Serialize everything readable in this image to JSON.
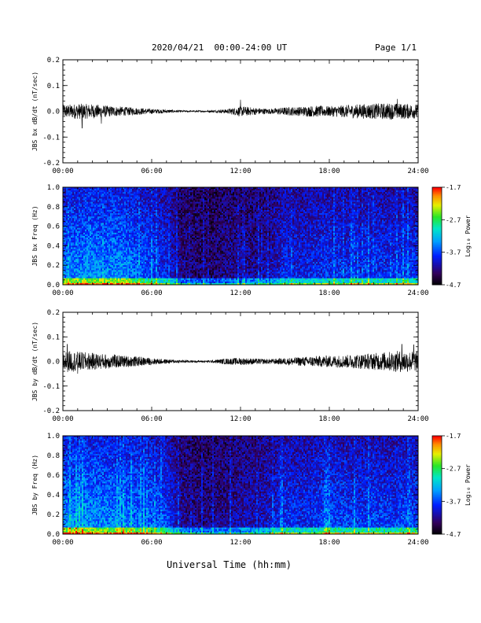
{
  "header": {
    "title": "2020/04/21  00:00-24:00 UT",
    "page": "Page 1/1"
  },
  "footer": {
    "xlabel": "Universal Time (hh:mm)"
  },
  "chart_data": [
    {
      "type": "line",
      "ylabel": "JBS bx dB/dt (nT/sec)",
      "ylim": [
        -0.2,
        0.2
      ],
      "yticks": [
        "-0.2",
        "-0.1",
        "0.0",
        "0.1",
        "0.2"
      ],
      "xlim": [
        "00:00",
        "24:00"
      ],
      "xticks": [
        "00:00",
        "06:00",
        "12:00",
        "18:00",
        "24:00"
      ],
      "envelope": {
        "hours": [
          0,
          1,
          2,
          3,
          4,
          5,
          6,
          7,
          8,
          9,
          10,
          11,
          12,
          13,
          14,
          15,
          16,
          17,
          18,
          19,
          20,
          21,
          22,
          23,
          24
        ],
        "amplitude": [
          0.025,
          0.03,
          0.028,
          0.022,
          0.018,
          0.014,
          0.01,
          0.007,
          0.004,
          0.003,
          0.004,
          0.008,
          0.02,
          0.014,
          0.01,
          0.016,
          0.018,
          0.022,
          0.02,
          0.024,
          0.028,
          0.03,
          0.032,
          0.03,
          0.028
        ]
      },
      "spikes": [
        {
          "hour": 1.3,
          "value": -0.065
        },
        {
          "hour": 2.6,
          "value": -0.048
        },
        {
          "hour": 12.0,
          "value": 0.045
        },
        {
          "hour": 22.6,
          "value": 0.048
        }
      ]
    },
    {
      "type": "heatmap",
      "ylabel": "JBS bx Freq (Hz)",
      "ylim": [
        0.0,
        1.0
      ],
      "yticks": [
        "0.0",
        "0.2",
        "0.4",
        "0.6",
        "0.8",
        "1.0"
      ],
      "xlim": [
        "00:00",
        "24:00"
      ],
      "xticks": [
        "00:00",
        "06:00",
        "12:00",
        "18:00",
        "24:00"
      ],
      "colorbar": {
        "label": "Log₁₀ Power",
        "range": [
          -4.7,
          -1.7
        ],
        "ticks": [
          "-1.7",
          "-2.7",
          "-3.7",
          "-4.7"
        ]
      },
      "activity_by_hour": [
        0.75,
        0.8,
        0.85,
        0.8,
        0.85,
        0.7,
        0.6,
        0.5,
        0.2,
        0.15,
        0.12,
        0.2,
        0.25,
        0.22,
        0.3,
        0.5,
        0.45,
        0.5,
        0.55,
        0.5,
        0.5,
        0.55,
        0.5,
        0.55,
        0.55
      ]
    },
    {
      "type": "line",
      "ylabel": "JBS by dB/dt (nT/sec)",
      "ylim": [
        -0.2,
        0.2
      ],
      "yticks": [
        "-0.2",
        "-0.1",
        "0.0",
        "0.1",
        "0.2"
      ],
      "xlim": [
        "00:00",
        "24:00"
      ],
      "xticks": [
        "00:00",
        "06:00",
        "12:00",
        "18:00",
        "24:00"
      ],
      "envelope": {
        "hours": [
          0,
          1,
          2,
          3,
          4,
          5,
          6,
          7,
          8,
          9,
          10,
          11,
          12,
          13,
          14,
          15,
          16,
          17,
          18,
          19,
          20,
          21,
          22,
          23,
          24
        ],
        "amplitude": [
          0.045,
          0.04,
          0.035,
          0.03,
          0.025,
          0.02,
          0.014,
          0.009,
          0.006,
          0.004,
          0.005,
          0.012,
          0.015,
          0.012,
          0.01,
          0.014,
          0.018,
          0.022,
          0.024,
          0.026,
          0.03,
          0.034,
          0.04,
          0.045,
          0.04
        ]
      },
      "spikes": [
        {
          "hour": 0.3,
          "value": 0.07
        },
        {
          "hour": 1.0,
          "value": -0.05
        },
        {
          "hour": 22.9,
          "value": 0.07
        },
        {
          "hour": 23.7,
          "value": 0.068
        }
      ]
    },
    {
      "type": "heatmap",
      "ylabel": "JBS by Freq (Hz)",
      "ylim": [
        0.0,
        1.0
      ],
      "yticks": [
        "0.0",
        "0.2",
        "0.4",
        "0.6",
        "0.8",
        "1.0"
      ],
      "xlim": [
        "00:00",
        "24:00"
      ],
      "xticks": [
        "00:00",
        "06:00",
        "12:00",
        "18:00",
        "24:00"
      ],
      "colorbar": {
        "label": "Log₁₀ Power",
        "range": [
          -4.7,
          -1.7
        ],
        "ticks": [
          "-1.7",
          "-2.7",
          "-3.7",
          "-4.7"
        ]
      },
      "activity_by_hour": [
        0.85,
        0.85,
        0.85,
        0.8,
        0.8,
        0.75,
        0.7,
        0.6,
        0.25,
        0.2,
        0.18,
        0.22,
        0.3,
        0.3,
        0.4,
        0.55,
        0.5,
        0.55,
        0.6,
        0.6,
        0.55,
        0.6,
        0.55,
        0.6,
        0.6
      ]
    }
  ]
}
